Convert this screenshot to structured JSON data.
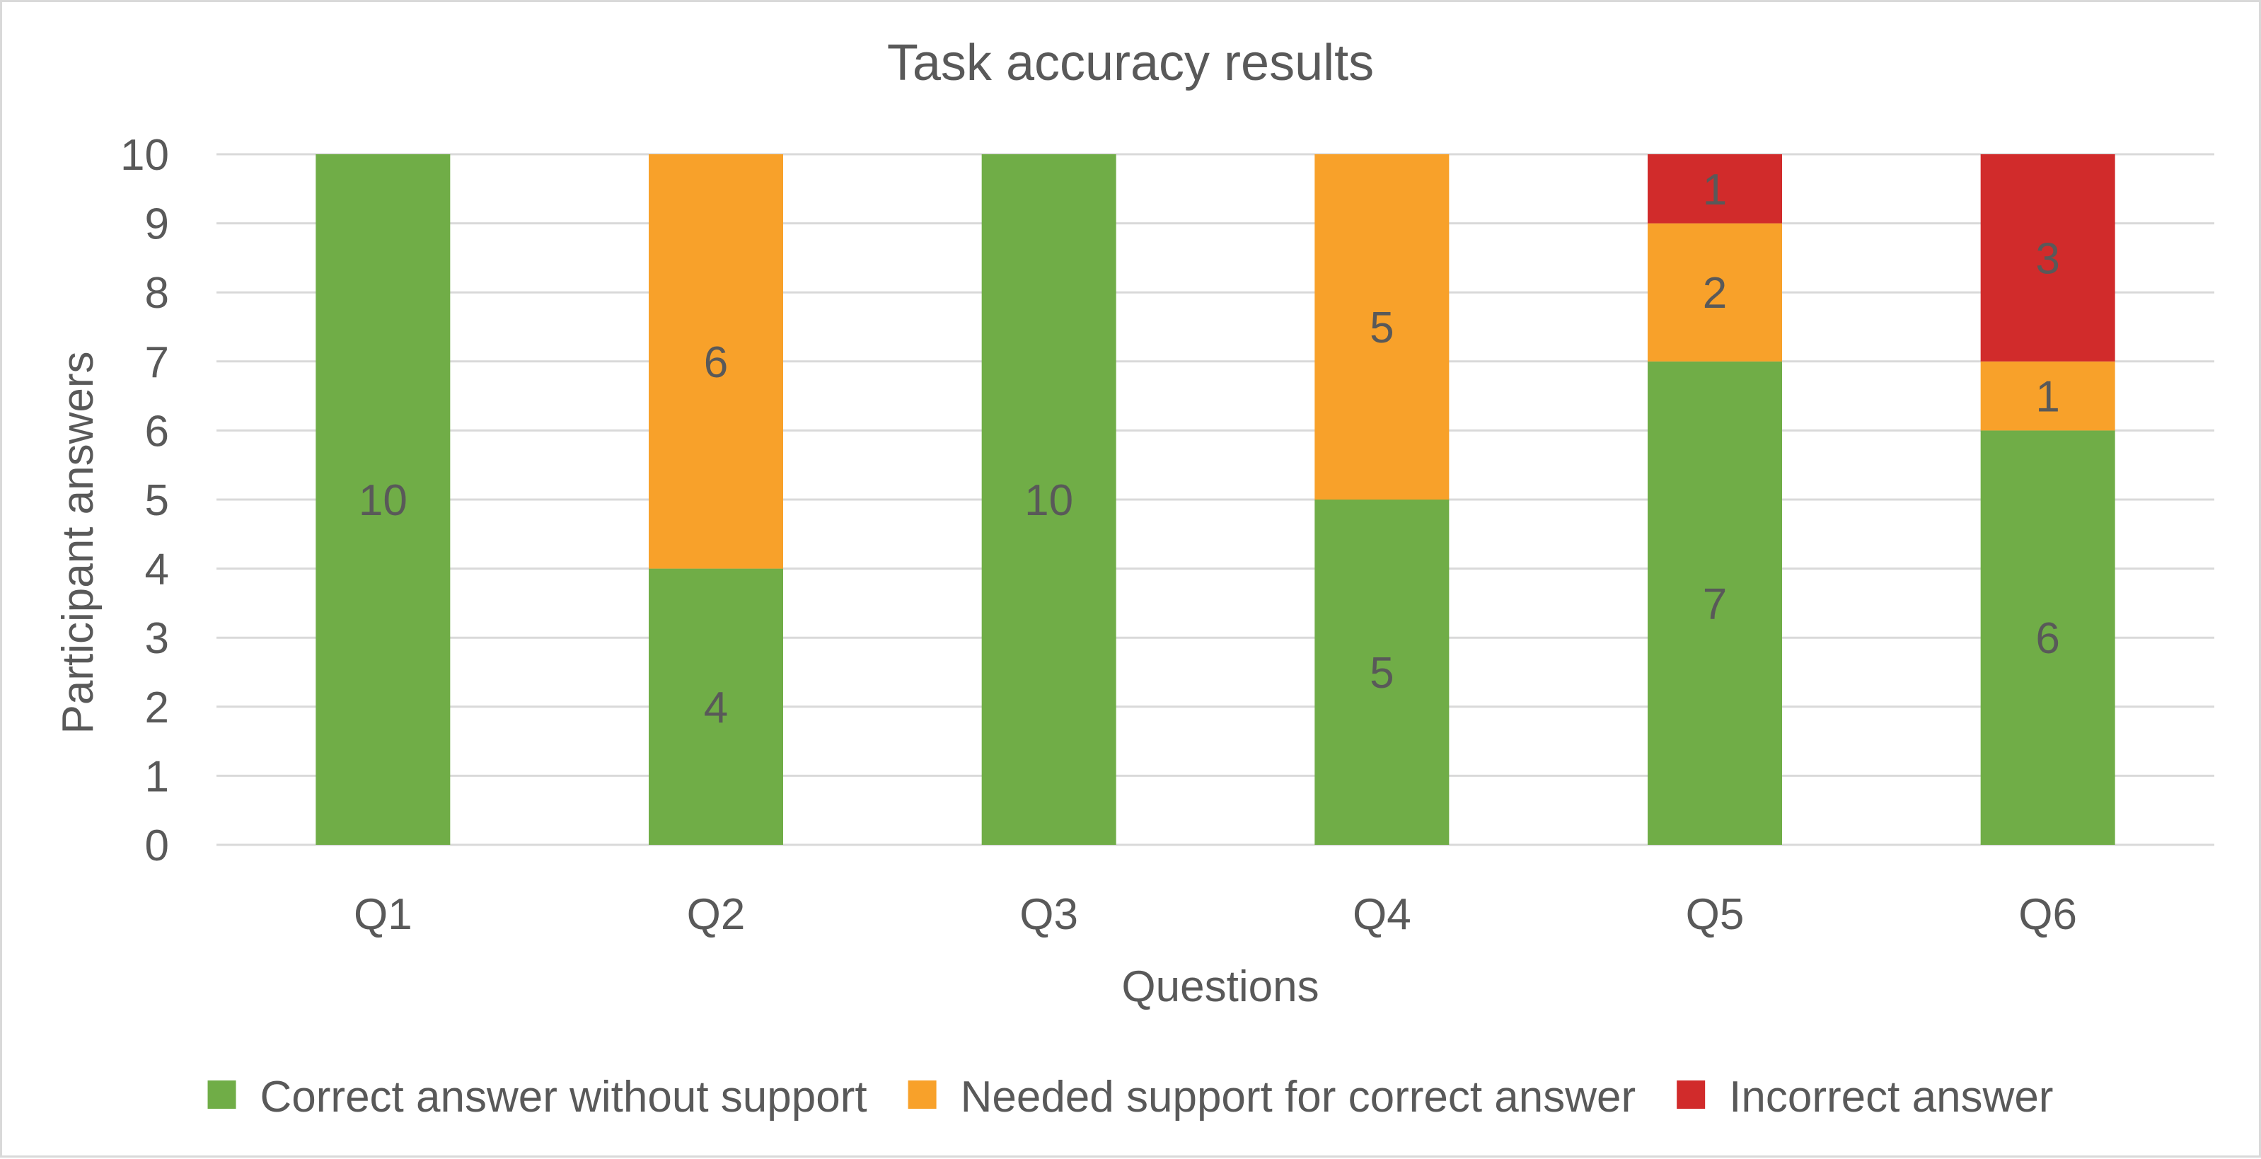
{
  "chart_data": {
    "type": "bar",
    "stacked": true,
    "title": "Task accuracy results",
    "xlabel": "Questions",
    "ylabel": "Participant answers",
    "categories": [
      "Q1",
      "Q2",
      "Q3",
      "Q4",
      "Q5",
      "Q6"
    ],
    "ylim": [
      0,
      10
    ],
    "yticks": [
      0,
      1,
      2,
      3,
      4,
      5,
      6,
      7,
      8,
      9,
      10
    ],
    "grid": true,
    "legend_position": "bottom",
    "series": [
      {
        "name": "Correct answer without support",
        "color": "#70ad47",
        "values": [
          10,
          4,
          10,
          5,
          7,
          6
        ]
      },
      {
        "name": "Needed support for correct answer",
        "color": "#f8a12a",
        "values": [
          0,
          6,
          0,
          5,
          2,
          1
        ]
      },
      {
        "name": "Incorrect answer",
        "color": "#d12b2b",
        "values": [
          0,
          0,
          0,
          0,
          1,
          3
        ]
      }
    ]
  }
}
